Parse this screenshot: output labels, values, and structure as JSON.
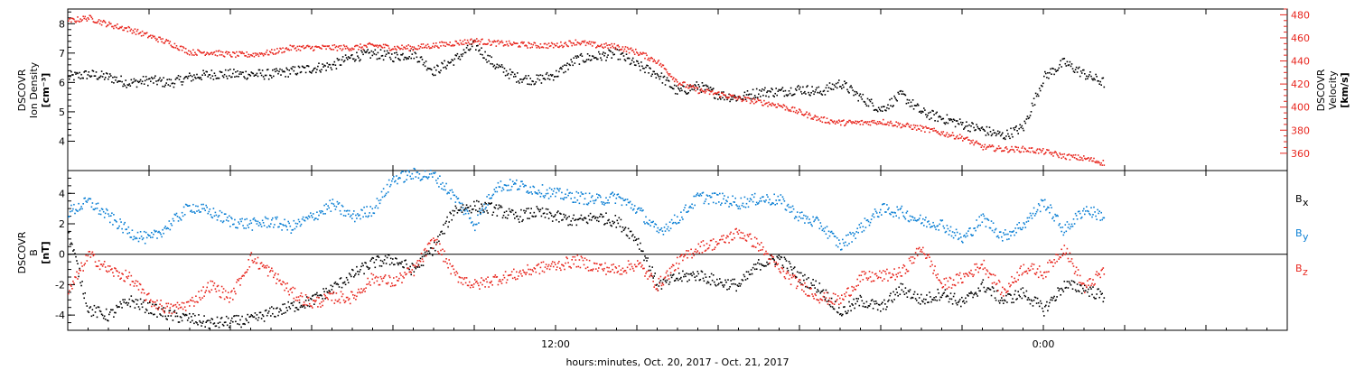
{
  "chart_data": [
    {
      "type": "scatter",
      "panel": "top",
      "ylabel_left": [
        "DSCOVR",
        "Ion Density",
        "[cm⁻³]"
      ],
      "ylabel_right": [
        "DSCOVR",
        "Velocity",
        "[km/s]"
      ],
      "x_domain": [
        0,
        30
      ],
      "ylim_left": [
        3,
        8.5
      ],
      "ylim_right": [
        345,
        485
      ],
      "left_ticks": [
        "4",
        "5",
        "6",
        "7",
        "8"
      ],
      "right_ticks": [
        "360",
        "380",
        "400",
        "420",
        "440",
        "460",
        "480"
      ],
      "colors": {
        "density": "#000000",
        "velocity": "#e8271f"
      },
      "series": [
        {
          "name": "Ion Density",
          "axis": "left",
          "color": "#000000",
          "x": [
            0.0,
            0.5,
            1.0,
            1.5,
            2.0,
            2.5,
            3.0,
            3.5,
            4.0,
            4.5,
            5.0,
            5.5,
            6.0,
            6.5,
            7.0,
            7.5,
            8.0,
            8.5,
            9.0,
            9.5,
            10.0,
            10.5,
            11.0,
            11.5,
            12.0,
            12.5,
            13.0,
            13.5,
            14.0,
            14.5,
            15.0,
            15.5,
            16.0,
            16.5,
            17.0,
            17.5,
            18.0,
            18.5,
            19.0,
            19.5,
            20.0,
            20.5,
            21.0,
            21.5,
            22.0,
            22.5,
            23.0,
            23.5,
            24.0,
            24.5,
            25.0,
            25.5
          ],
          "values": [
            6.2,
            6.3,
            6.2,
            6.0,
            6.1,
            6.0,
            6.2,
            6.3,
            6.3,
            6.3,
            6.3,
            6.4,
            6.5,
            6.6,
            6.9,
            7.0,
            6.9,
            7.0,
            6.4,
            6.8,
            7.3,
            6.6,
            6.2,
            6.1,
            6.3,
            6.8,
            6.9,
            7.0,
            6.6,
            6.3,
            5.7,
            5.9,
            5.6,
            5.5,
            5.7,
            5.7,
            5.8,
            5.7,
            6.0,
            5.5,
            5.1,
            5.6,
            5.0,
            4.8,
            4.6,
            4.4,
            4.2,
            4.5,
            6.2,
            6.7,
            6.3,
            6.0
          ]
        },
        {
          "name": "Velocity",
          "axis": "right",
          "color": "#e8271f",
          "x": [
            0.0,
            0.5,
            1.0,
            1.5,
            2.0,
            2.5,
            3.0,
            3.5,
            4.0,
            4.5,
            5.0,
            5.5,
            6.0,
            6.5,
            7.0,
            7.5,
            8.0,
            8.5,
            9.0,
            9.5,
            10.0,
            10.5,
            11.0,
            11.5,
            12.0,
            12.5,
            13.0,
            13.5,
            14.0,
            14.5,
            15.0,
            15.5,
            16.0,
            16.5,
            17.0,
            17.5,
            18.0,
            18.5,
            19.0,
            19.5,
            20.0,
            20.5,
            21.0,
            21.5,
            22.0,
            22.5,
            23.0,
            23.5,
            24.0,
            24.5,
            25.0,
            25.5
          ],
          "values": [
            475,
            478,
            472,
            468,
            462,
            456,
            448,
            448,
            446,
            446,
            448,
            452,
            452,
            452,
            452,
            454,
            452,
            452,
            454,
            456,
            458,
            456,
            455,
            454,
            454,
            457,
            454,
            453,
            448,
            440,
            422,
            415,
            412,
            408,
            405,
            402,
            396,
            390,
            387,
            387,
            388,
            385,
            382,
            378,
            374,
            366,
            364,
            364,
            362,
            358,
            356,
            352
          ]
        }
      ]
    },
    {
      "type": "scatter",
      "panel": "bottom",
      "ylabel_left": [
        "DSCOVR",
        "B",
        "[nT]"
      ],
      "x_domain": [
        0,
        30
      ],
      "ylim": [
        -5.0,
        5.5
      ],
      "left_ticks": [
        "4",
        "2",
        "0",
        "-2",
        "-4"
      ],
      "zero_line": true,
      "legend": [
        {
          "label": "B",
          "sub": "x",
          "color": "#000000"
        },
        {
          "label": "B",
          "sub": "y",
          "color": "#0a7fd4"
        },
        {
          "label": "B",
          "sub": "z",
          "color": "#e8271f"
        }
      ],
      "series": [
        {
          "name": "Bx",
          "color": "#000000",
          "x": [
            0.0,
            0.5,
            1.0,
            1.5,
            2.0,
            2.5,
            3.0,
            3.5,
            4.0,
            4.5,
            5.0,
            5.5,
            6.0,
            6.5,
            7.0,
            7.5,
            8.0,
            8.5,
            9.0,
            9.5,
            10.0,
            10.5,
            11.0,
            11.5,
            12.0,
            12.5,
            13.0,
            13.5,
            14.0,
            14.5,
            15.0,
            15.5,
            16.0,
            16.5,
            17.0,
            17.5,
            18.0,
            18.5,
            19.0,
            19.5,
            20.0,
            20.5,
            21.0,
            21.5,
            22.0,
            22.5,
            23.0,
            23.5,
            24.0,
            24.5,
            25.0,
            25.5
          ],
          "values": [
            1.5,
            -3.6,
            -4.0,
            -3.0,
            -3.5,
            -4.0,
            -4.2,
            -4.5,
            -4.4,
            -4.3,
            -3.8,
            -3.4,
            -3.0,
            -2.2,
            -1.3,
            -0.5,
            -0.3,
            -1.0,
            0.5,
            3.0,
            3.2,
            3.0,
            2.5,
            2.8,
            2.5,
            2.2,
            2.5,
            2.2,
            1.0,
            -2.0,
            -1.5,
            -1.3,
            -1.8,
            -2.0,
            -0.6,
            -0.2,
            -1.5,
            -2.2,
            -3.8,
            -3.0,
            -3.5,
            -2.2,
            -3.0,
            -2.5,
            -3.2,
            -2.0,
            -3.0,
            -2.5,
            -3.6,
            -2.0,
            -2.2,
            -2.8
          ]
        },
        {
          "name": "By",
          "color": "#0a7fd4",
          "x": [
            0.0,
            0.5,
            1.0,
            1.5,
            2.0,
            2.5,
            3.0,
            3.5,
            4.0,
            4.5,
            5.0,
            5.5,
            6.0,
            6.5,
            7.0,
            7.5,
            8.0,
            8.5,
            9.0,
            9.5,
            10.0,
            10.5,
            11.0,
            11.5,
            12.0,
            12.5,
            13.0,
            13.5,
            14.0,
            14.5,
            15.0,
            15.5,
            16.0,
            16.5,
            17.0,
            17.5,
            18.0,
            18.5,
            19.0,
            19.5,
            20.0,
            20.5,
            21.0,
            21.5,
            22.0,
            22.5,
            23.0,
            23.5,
            24.0,
            24.5,
            25.0,
            25.5
          ],
          "values": [
            2.8,
            3.5,
            2.5,
            1.5,
            1.0,
            2.0,
            3.2,
            2.8,
            2.2,
            2.0,
            2.2,
            1.8,
            2.5,
            3.3,
            2.5,
            3.0,
            5.0,
            5.3,
            5.2,
            3.8,
            2.0,
            4.5,
            4.6,
            4.3,
            4.0,
            3.8,
            3.6,
            3.8,
            3.0,
            1.5,
            2.4,
            3.8,
            3.7,
            3.4,
            3.7,
            3.6,
            2.5,
            2.0,
            0.6,
            1.8,
            3.0,
            2.8,
            2.2,
            2.0,
            1.0,
            2.4,
            1.2,
            2.0,
            3.5,
            1.6,
            3.0,
            2.5
          ]
        },
        {
          "name": "Bz",
          "color": "#e8271f",
          "x": [
            0.0,
            0.5,
            1.0,
            1.5,
            2.0,
            2.5,
            3.0,
            3.5,
            4.0,
            4.5,
            5.0,
            5.5,
            6.0,
            6.5,
            7.0,
            7.5,
            8.0,
            8.5,
            9.0,
            9.5,
            10.0,
            10.5,
            11.0,
            11.5,
            12.0,
            12.5,
            13.0,
            13.5,
            14.0,
            14.5,
            15.0,
            15.5,
            16.0,
            16.5,
            17.0,
            17.5,
            18.0,
            18.5,
            19.0,
            19.5,
            20.0,
            20.5,
            21.0,
            21.5,
            22.0,
            22.5,
            23.0,
            23.5,
            24.0,
            24.5,
            25.0,
            25.5
          ],
          "values": [
            -2.5,
            0.0,
            -1.0,
            -1.5,
            -3.0,
            -3.6,
            -3.2,
            -2.0,
            -2.8,
            -0.2,
            -1.2,
            -2.5,
            -3.2,
            -2.8,
            -2.8,
            -1.5,
            -1.8,
            -1.0,
            1.0,
            -1.3,
            -2.0,
            -1.6,
            -1.3,
            -0.9,
            -0.7,
            -0.4,
            -0.8,
            -1.0,
            -0.6,
            -2.0,
            -0.5,
            0.5,
            0.8,
            1.5,
            0.6,
            -1.0,
            -2.0,
            -2.8,
            -3.0,
            -1.5,
            -1.4,
            -1.2,
            0.5,
            -2.0,
            -1.5,
            -0.6,
            -2.5,
            -0.8,
            -1.2,
            0.5,
            -2.2,
            -1.0
          ]
        }
      ]
    }
  ],
  "x_axis": {
    "tick_labels": [
      {
        "x": 12,
        "label": "12:00"
      },
      {
        "x": 24,
        "label": "0:00"
      }
    ],
    "xlabel": "hours:minutes, Oct. 20, 2017 - Oct. 21, 2017"
  }
}
